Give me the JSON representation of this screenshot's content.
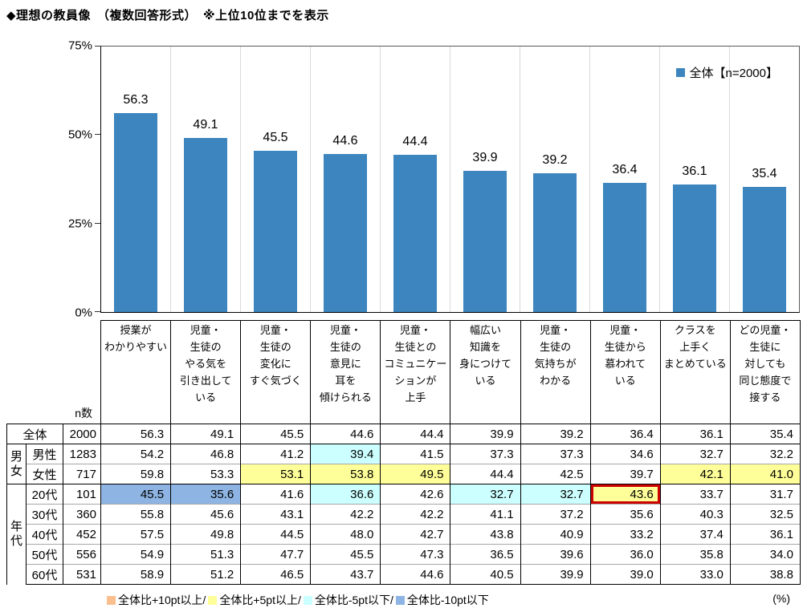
{
  "title": "◆理想の教員像　（複数回答形式）　※上位10位までを表示",
  "colors": {
    "bar": "#3C85BE",
    "plus10": "#FABF8F",
    "plus5": "#FFFF99",
    "minus5": "#CCFFFF",
    "minus10": "#8DB4E2",
    "red_box": "#CC0000"
  },
  "chart_data": {
    "type": "bar",
    "title": "理想の教員像（上位10位）",
    "legend": "全体【n=2000】",
    "legend_position": "top-right",
    "xlabel": "",
    "ylabel": "",
    "ylim": [
      0,
      75
    ],
    "y_ticks": [
      "75%",
      "50%",
      "25%",
      "0%"
    ],
    "grid": "vertical-separators",
    "categories": [
      "授業が\nわかりやすい",
      "児童・\n生徒の\nやる気を\n引き出して\nいる",
      "児童・\n生徒の\n変化に\nすぐ気づく",
      "児童・\n生徒の\n意見に\n耳を\n傾けられる",
      "児童・\n生徒との\nコミュニケー\nションが\n上手",
      "幅広い\n知識を\n身につけて\nいる",
      "児童・\n生徒の\n気持ちが\nわかる",
      "児童・\n生徒から\n慕われて\nいる",
      "クラスを\n上手く\nまとめている",
      "どの児童・\n生徒に\n対しても\n同じ態度で\n接する"
    ],
    "values": [
      56.3,
      49.1,
      45.5,
      44.6,
      44.4,
      39.9,
      39.2,
      36.4,
      36.1,
      35.4
    ]
  },
  "table": {
    "n_label": "n数",
    "row_groups": [
      {
        "group_label": "",
        "rows": [
          {
            "label": "全体",
            "n": 2000,
            "values": [
              56.3,
              49.1,
              45.5,
              44.6,
              44.4,
              39.9,
              39.2,
              36.4,
              36.1,
              35.4
            ],
            "highlights": [
              "",
              "",
              "",
              "",
              "",
              "",
              "",
              "",
              "",
              ""
            ]
          }
        ]
      },
      {
        "group_label": "男女",
        "rows": [
          {
            "label": "男性",
            "n": 1283,
            "values": [
              54.2,
              46.8,
              41.2,
              39.4,
              41.5,
              37.3,
              37.3,
              34.6,
              32.7,
              32.2
            ],
            "highlights": [
              "",
              "",
              "",
              "minus5",
              "",
              "",
              "",
              "",
              "",
              ""
            ]
          },
          {
            "label": "女性",
            "n": 717,
            "values": [
              59.8,
              53.3,
              53.1,
              53.8,
              49.5,
              44.4,
              42.5,
              39.7,
              42.1,
              41.0
            ],
            "highlights": [
              "",
              "",
              "plus5",
              "plus5",
              "plus5",
              "",
              "",
              "",
              "plus5",
              "plus5"
            ]
          }
        ]
      },
      {
        "group_label": "年代",
        "rows": [
          {
            "label": "20代",
            "n": 101,
            "values": [
              45.5,
              35.6,
              41.6,
              36.6,
              42.6,
              32.7,
              32.7,
              43.6,
              33.7,
              31.7
            ],
            "highlights": [
              "minus10",
              "minus10",
              "",
              "minus5",
              "",
              "minus5",
              "minus5",
              "plus5 redbox",
              "",
              ""
            ]
          },
          {
            "label": "30代",
            "n": 360,
            "values": [
              55.8,
              45.6,
              43.1,
              42.2,
              42.2,
              41.1,
              37.2,
              35.6,
              40.3,
              32.5
            ],
            "highlights": [
              "",
              "",
              "",
              "",
              "",
              "",
              "",
              "",
              "",
              ""
            ]
          },
          {
            "label": "40代",
            "n": 452,
            "values": [
              57.5,
              49.8,
              44.5,
              48.0,
              42.7,
              43.8,
              40.9,
              33.2,
              37.4,
              36.1
            ],
            "highlights": [
              "",
              "",
              "",
              "",
              "",
              "",
              "",
              "",
              "",
              ""
            ]
          },
          {
            "label": "50代",
            "n": 556,
            "values": [
              54.9,
              51.3,
              47.7,
              45.5,
              47.3,
              36.5,
              39.6,
              36.0,
              35.8,
              34.0
            ],
            "highlights": [
              "",
              "",
              "",
              "",
              "",
              "",
              "",
              "",
              "",
              ""
            ]
          },
          {
            "label": "60代",
            "n": 531,
            "values": [
              58.9,
              51.2,
              46.5,
              43.7,
              44.6,
              40.5,
              39.9,
              39.0,
              33.0,
              38.8
            ],
            "highlights": [
              "",
              "",
              "",
              "",
              "",
              "",
              "",
              "",
              "",
              ""
            ]
          }
        ]
      }
    ]
  },
  "legend_notes": [
    {
      "color": "#FABF8F",
      "label": "全体比+10pt以上/"
    },
    {
      "color": "#FFFF99",
      "label": "全体比+5pt以上/"
    },
    {
      "color": "#CCFFFF",
      "label": "全体比-5pt以下/"
    },
    {
      "color": "#8DB4E2",
      "label": "全体比-10pt以下"
    }
  ],
  "unit_label": "(%)"
}
